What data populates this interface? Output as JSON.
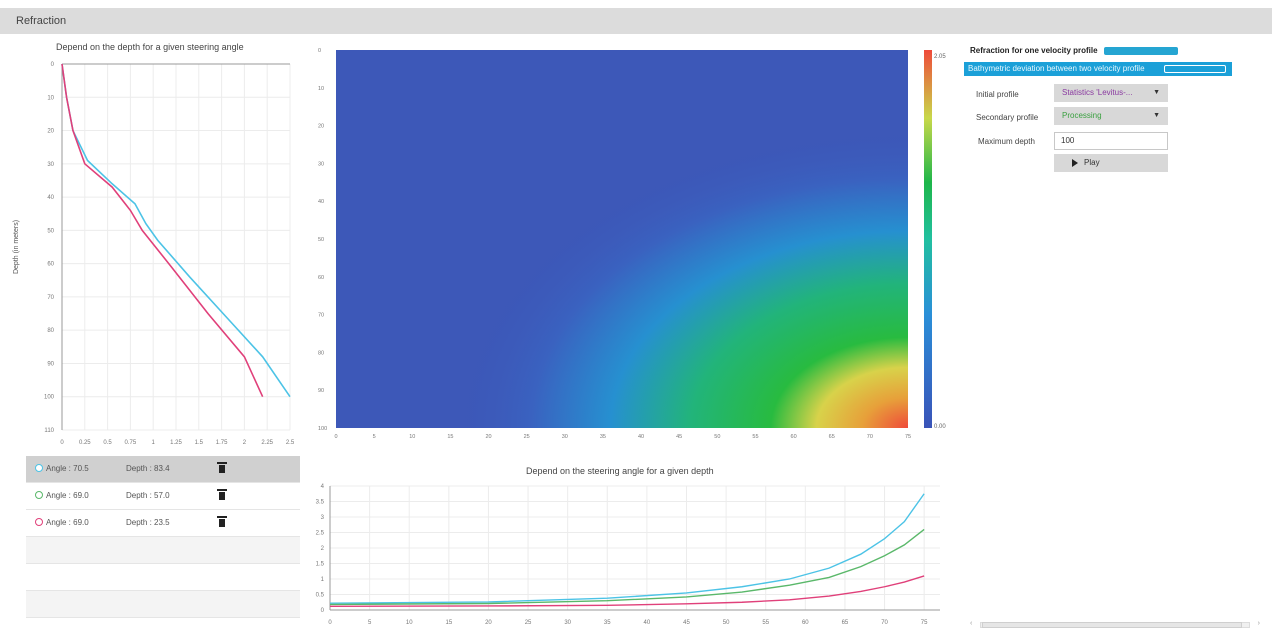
{
  "window": {
    "title": "Refraction"
  },
  "colors": {
    "accent": "#1ba0d8",
    "series_cyan": "#4cc3e6",
    "series_green": "#5ab86a",
    "series_pink": "#e0407a"
  },
  "left_chart": {
    "title": "Depend on the depth for a given steering angle",
    "ylabel": "Depth (in meters)",
    "chart_data": {
      "type": "line",
      "x_ticks": [
        "0",
        "0.25",
        "0.5",
        "0.75",
        "1",
        "1.25",
        "1.5",
        "1.75",
        "2",
        "2.25",
        "2.5"
      ],
      "y_ticks": [
        "0",
        "10",
        "20",
        "30",
        "40",
        "50",
        "60",
        "70",
        "80",
        "90",
        "100",
        "110"
      ],
      "xlim": [
        0,
        2.5
      ],
      "ylim": [
        0,
        110
      ],
      "y_inverted": true,
      "grid": true,
      "series": [
        {
          "color": "#4cc3e6",
          "points": [
            [
              0,
              0
            ],
            [
              0.05,
              10
            ],
            [
              0.12,
              20
            ],
            [
              0.28,
              29
            ],
            [
              0.55,
              36
            ],
            [
              0.8,
              42
            ],
            [
              0.92,
              48
            ],
            [
              1.05,
              53
            ],
            [
              1.4,
              64
            ],
            [
              1.8,
              76
            ],
            [
              2.2,
              88
            ],
            [
              2.5,
              100
            ]
          ]
        },
        {
          "color": "#e0407a",
          "points": [
            [
              0,
              0
            ],
            [
              0.05,
              10
            ],
            [
              0.12,
              20
            ],
            [
              0.25,
              30
            ],
            [
              0.55,
              37
            ],
            [
              0.75,
              44
            ],
            [
              0.88,
              50
            ],
            [
              1.2,
              61
            ],
            [
              1.6,
              75
            ],
            [
              2.0,
              88
            ],
            [
              2.2,
              100
            ]
          ]
        }
      ]
    }
  },
  "heatmap": {
    "chart_data": {
      "type": "heatmap",
      "x_ticks": [
        "0",
        "5",
        "10",
        "15",
        "20",
        "25",
        "30",
        "35",
        "40",
        "45",
        "50",
        "55",
        "60",
        "65",
        "70",
        "75"
      ],
      "y_ticks": [
        "0",
        "10",
        "20",
        "30",
        "40",
        "50",
        "60",
        "70",
        "80",
        "90",
        "100"
      ],
      "xlim": [
        0,
        75
      ],
      "ylim": [
        0,
        100
      ],
      "colorbar": {
        "min_label": "0.00",
        "max_label": "2.05"
      }
    }
  },
  "angle_list": {
    "rows": [
      {
        "angle": "Angle : 70.5",
        "depth": "Depth : 83.4",
        "color": "#4cc3e6",
        "selected": true
      },
      {
        "angle": "Angle : 69.0",
        "depth": "Depth : 57.0",
        "color": "#5ab86a",
        "selected": false
      },
      {
        "angle": "Angle : 69.0",
        "depth": "Depth : 23.5",
        "color": "#e0407a",
        "selected": false
      }
    ]
  },
  "bottom_chart": {
    "title": "Depend on the steering angle for a given depth",
    "chart_data": {
      "type": "line",
      "x_ticks": [
        "0",
        "5",
        "10",
        "15",
        "20",
        "25",
        "30",
        "35",
        "40",
        "45",
        "50",
        "55",
        "60",
        "65",
        "70",
        "75"
      ],
      "y_ticks": [
        "0",
        "0.5",
        "1",
        "1.5",
        "2",
        "2.5",
        "3",
        "3.5",
        "4"
      ],
      "xlim": [
        0,
        77
      ],
      "ylim": [
        0,
        4
      ],
      "grid": true,
      "series": [
        {
          "color": "#4cc3e6",
          "points": [
            [
              0,
              0.22
            ],
            [
              20,
              0.26
            ],
            [
              35,
              0.38
            ],
            [
              45,
              0.55
            ],
            [
              52,
              0.75
            ],
            [
              58,
              1.0
            ],
            [
              63,
              1.35
            ],
            [
              67,
              1.8
            ],
            [
              70,
              2.3
            ],
            [
              72.5,
              2.85
            ],
            [
              75,
              3.75
            ]
          ]
        },
        {
          "color": "#5ab86a",
          "points": [
            [
              0,
              0.18
            ],
            [
              20,
              0.21
            ],
            [
              35,
              0.3
            ],
            [
              45,
              0.42
            ],
            [
              52,
              0.58
            ],
            [
              58,
              0.8
            ],
            [
              63,
              1.05
            ],
            [
              67,
              1.4
            ],
            [
              70,
              1.75
            ],
            [
              72.5,
              2.1
            ],
            [
              75,
              2.6
            ]
          ]
        },
        {
          "color": "#e0407a",
          "points": [
            [
              0,
              0.12
            ],
            [
              20,
              0.13
            ],
            [
              35,
              0.15
            ],
            [
              45,
              0.2
            ],
            [
              52,
              0.25
            ],
            [
              58,
              0.33
            ],
            [
              63,
              0.45
            ],
            [
              67,
              0.6
            ],
            [
              70,
              0.75
            ],
            [
              72.5,
              0.9
            ],
            [
              75,
              1.1
            ]
          ]
        }
      ]
    }
  },
  "right_panel": {
    "mode_one": "Refraction for one velocity profile",
    "mode_two": "Bathymetric deviation between two velocity profile",
    "initial_label": "Initial profile",
    "initial_value": "Statistics 'Levitus-...",
    "secondary_label": "Secondary profile",
    "secondary_value": "Processing",
    "maxdepth_label": "Maximum depth",
    "maxdepth_value": "100",
    "play_label": "Play"
  }
}
